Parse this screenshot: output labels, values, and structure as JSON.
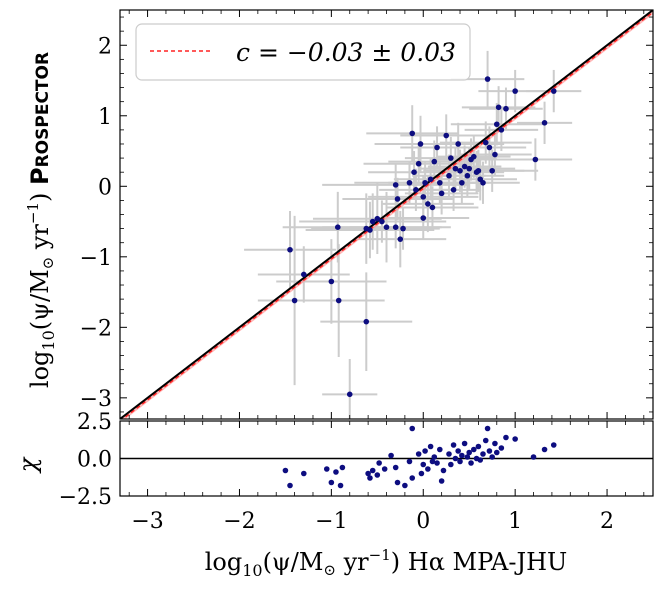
{
  "chart_data": [
    {
      "type": "scatter",
      "panel": "main",
      "xlim": [
        -3.3,
        2.5
      ],
      "ylim": [
        -3.3,
        2.5
      ],
      "xticks": [
        -3,
        -2,
        -1,
        0,
        1,
        2
      ],
      "yticks": [
        -3,
        -2,
        -1,
        0,
        1,
        2
      ],
      "xtick_labels": [
        "−3",
        "−2",
        "−1",
        "0",
        "1",
        "2"
      ],
      "ytick_labels": [
        "−3",
        "−2",
        "−1",
        "0",
        "1",
        "2"
      ],
      "ylabel_main": "log",
      "ylabel_sub": "10",
      "ylabel_rest": "(ψ/M",
      "ylabel_sun": "⊙",
      "ylabel_unit": " yr",
      "ylabel_exp": "−1",
      "ylabel_tail": ") ",
      "ylabel_code": "Prospector",
      "legend_label": "c = −0.03 ± 0.03",
      "legend_position": "top-left",
      "one_to_one_line": {
        "color": "#000000",
        "label": ""
      },
      "fit_line": {
        "intercept": -0.03,
        "uncertainty": 0.03,
        "color": "#ff2222",
        "band_color": "#ff9999"
      },
      "point_color": "#0d0d80",
      "errorbar_color": "#cccccc",
      "points": [
        {
          "x": -1.45,
          "y": -0.9,
          "xerr": 0.5,
          "yerr": 0.55
        },
        {
          "x": -1.4,
          "y": -1.62,
          "xerr": 0.4,
          "yerr": 1.2
        },
        {
          "x": -1.3,
          "y": -1.25,
          "xerr": 0.5,
          "yerr": 0.4
        },
        {
          "x": -1.0,
          "y": -1.35,
          "xerr": 0.6,
          "yerr": 0.6
        },
        {
          "x": -0.92,
          "y": -1.62,
          "xerr": 0.5,
          "yerr": 0.8
        },
        {
          "x": -0.93,
          "y": -0.58,
          "xerr": 0.6,
          "yerr": 0.5
        },
        {
          "x": -0.8,
          "y": -2.95,
          "xerr": 0.3,
          "yerr": 0.5
        },
        {
          "x": -0.62,
          "y": -1.92,
          "xerr": 0.5,
          "yerr": 0.7
        },
        {
          "x": -0.62,
          "y": -0.6,
          "xerr": 0.6,
          "yerr": 0.5
        },
        {
          "x": -0.58,
          "y": -0.62,
          "xerr": 0.7,
          "yerr": 0.4
        },
        {
          "x": -0.55,
          "y": -0.5,
          "xerr": 0.8,
          "yerr": 0.4
        },
        {
          "x": -0.5,
          "y": -0.46,
          "xerr": 0.7,
          "yerr": 0.5
        },
        {
          "x": -0.45,
          "y": -0.5,
          "xerr": 0.6,
          "yerr": 0.3
        },
        {
          "x": -0.4,
          "y": -0.58,
          "xerr": 0.7,
          "yerr": 0.5
        },
        {
          "x": -0.3,
          "y": 0.02,
          "xerr": 0.8,
          "yerr": 0.3
        },
        {
          "x": -0.28,
          "y": -0.18,
          "xerr": 0.6,
          "yerr": 0.3
        },
        {
          "x": -0.3,
          "y": -0.58,
          "xerr": 0.5,
          "yerr": 0.3
        },
        {
          "x": -0.25,
          "y": -0.75,
          "xerr": 0.5,
          "yerr": 0.4
        },
        {
          "x": -0.22,
          "y": -0.6,
          "xerr": 0.4,
          "yerr": 0.3
        },
        {
          "x": -0.15,
          "y": 0.05,
          "xerr": 0.6,
          "yerr": 0.3
        },
        {
          "x": -0.12,
          "y": 0.75,
          "xerr": 0.5,
          "yerr": 0.4
        },
        {
          "x": -0.1,
          "y": 0.2,
          "xerr": 0.5,
          "yerr": 0.3
        },
        {
          "x": -0.08,
          "y": -0.05,
          "xerr": 0.4,
          "yerr": 0.3
        },
        {
          "x": -0.05,
          "y": 0.32,
          "xerr": 0.6,
          "yerr": 0.3
        },
        {
          "x": -0.03,
          "y": 0.6,
          "xerr": 0.5,
          "yerr": 0.4
        },
        {
          "x": 0.0,
          "y": -0.15,
          "xerr": 0.6,
          "yerr": 0.3
        },
        {
          "x": 0.0,
          "y": -0.45,
          "xerr": 0.5,
          "yerr": 0.3
        },
        {
          "x": 0.02,
          "y": 0.05,
          "xerr": 0.4,
          "yerr": 0.3
        },
        {
          "x": 0.05,
          "y": -0.25,
          "xerr": 0.5,
          "yerr": 0.4
        },
        {
          "x": 0.08,
          "y": 0.1,
          "xerr": 0.4,
          "yerr": 0.3
        },
        {
          "x": 0.1,
          "y": -0.3,
          "xerr": 0.5,
          "yerr": 0.3
        },
        {
          "x": 0.12,
          "y": 0.35,
          "xerr": 0.5,
          "yerr": 0.3
        },
        {
          "x": 0.15,
          "y": 0.55,
          "xerr": 0.4,
          "yerr": 0.3
        },
        {
          "x": 0.18,
          "y": 0.05,
          "xerr": 0.4,
          "yerr": 0.3
        },
        {
          "x": 0.2,
          "y": -0.1,
          "xerr": 0.4,
          "yerr": 0.3
        },
        {
          "x": 0.25,
          "y": 0.72,
          "xerr": 0.5,
          "yerr": 0.3
        },
        {
          "x": 0.28,
          "y": 0.15,
          "xerr": 0.4,
          "yerr": 0.3
        },
        {
          "x": 0.3,
          "y": 0.4,
          "xerr": 0.5,
          "yerr": 0.3
        },
        {
          "x": 0.33,
          "y": -0.05,
          "xerr": 0.3,
          "yerr": 0.3
        },
        {
          "x": 0.35,
          "y": 0.25,
          "xerr": 0.4,
          "yerr": 0.3
        },
        {
          "x": 0.38,
          "y": 0.6,
          "xerr": 0.5,
          "yerr": 0.3
        },
        {
          "x": 0.4,
          "y": 0.22,
          "xerr": 0.4,
          "yerr": 0.3
        },
        {
          "x": 0.42,
          "y": 0.05,
          "xerr": 0.3,
          "yerr": 0.3
        },
        {
          "x": 0.45,
          "y": 0.28,
          "xerr": 0.4,
          "yerr": 0.3
        },
        {
          "x": 0.48,
          "y": 0.15,
          "xerr": 0.4,
          "yerr": 0.3
        },
        {
          "x": 0.5,
          "y": 0.25,
          "xerr": 0.5,
          "yerr": 0.3
        },
        {
          "x": 0.52,
          "y": 0.38,
          "xerr": 0.4,
          "yerr": 0.3
        },
        {
          "x": 0.55,
          "y": 0.42,
          "xerr": 0.4,
          "yerr": 0.3
        },
        {
          "x": 0.58,
          "y": 0.2,
          "xerr": 0.3,
          "yerr": 0.3
        },
        {
          "x": 0.6,
          "y": 0.22,
          "xerr": 0.5,
          "yerr": 0.3
        },
        {
          "x": 0.62,
          "y": 0.1,
          "xerr": 0.4,
          "yerr": 0.3
        },
        {
          "x": 0.65,
          "y": 0.05,
          "xerr": 0.4,
          "yerr": 0.3
        },
        {
          "x": 0.68,
          "y": 0.62,
          "xerr": 0.5,
          "yerr": 0.3
        },
        {
          "x": 0.7,
          "y": 1.52,
          "xerr": 0.4,
          "yerr": 0.4
        },
        {
          "x": 0.72,
          "y": 0.55,
          "xerr": 0.4,
          "yerr": 0.3
        },
        {
          "x": 0.75,
          "y": 0.22,
          "xerr": 0.5,
          "yerr": 0.3
        },
        {
          "x": 0.78,
          "y": 0.45,
          "xerr": 0.4,
          "yerr": 0.3
        },
        {
          "x": 0.8,
          "y": 0.88,
          "xerr": 0.5,
          "yerr": 0.3
        },
        {
          "x": 0.82,
          "y": 1.12,
          "xerr": 0.4,
          "yerr": 0.3
        },
        {
          "x": 0.85,
          "y": 0.8,
          "xerr": 0.4,
          "yerr": 0.3
        },
        {
          "x": 0.9,
          "y": 1.1,
          "xerr": 0.4,
          "yerr": 0.3
        },
        {
          "x": 1.0,
          "y": 1.35,
          "xerr": 0.4,
          "yerr": 0.3
        },
        {
          "x": 1.22,
          "y": 0.38,
          "xerr": 0.4,
          "yerr": 0.3
        },
        {
          "x": 1.32,
          "y": 0.9,
          "xerr": 0.3,
          "yerr": 0.3
        },
        {
          "x": 1.42,
          "y": 1.35,
          "xerr": 0.3,
          "yerr": 0.3
        }
      ]
    },
    {
      "type": "scatter",
      "panel": "residual",
      "xlim": [
        -3.3,
        2.5
      ],
      "ylim": [
        -2.5,
        2.5
      ],
      "yticks": [
        2.5,
        0.0,
        -2.5
      ],
      "ytick_labels": [
        "2.5",
        "0.0",
        "−2.5"
      ],
      "ylabel": "χ",
      "xlabel_main": "log",
      "xlabel_sub": "10",
      "xlabel_rest": "(ψ/M",
      "xlabel_sun": "⊙",
      "xlabel_unit": " yr",
      "xlabel_exp": "−1",
      "xlabel_tail": ") Hα MPA-JHU",
      "zero_line": 0.0,
      "points": [
        {
          "x": -1.5,
          "y": -0.8
        },
        {
          "x": -1.45,
          "y": -1.8
        },
        {
          "x": -1.3,
          "y": -1.0
        },
        {
          "x": -1.05,
          "y": -0.7
        },
        {
          "x": -1.0,
          "y": -1.6
        },
        {
          "x": -0.95,
          "y": -0.9
        },
        {
          "x": -0.9,
          "y": -1.8
        },
        {
          "x": -0.88,
          "y": -0.6
        },
        {
          "x": -0.6,
          "y": -1.0
        },
        {
          "x": -0.58,
          "y": -1.3
        },
        {
          "x": -0.55,
          "y": -0.8
        },
        {
          "x": -0.5,
          "y": -1.1
        },
        {
          "x": -0.48,
          "y": -0.3
        },
        {
          "x": -0.42,
          "y": -0.7
        },
        {
          "x": -0.35,
          "y": 0.2
        },
        {
          "x": -0.3,
          "y": -0.6
        },
        {
          "x": -0.28,
          "y": -1.6
        },
        {
          "x": -0.2,
          "y": -1.8
        },
        {
          "x": -0.15,
          "y": -0.2
        },
        {
          "x": -0.12,
          "y": -1.3
        },
        {
          "x": -0.05,
          "y": 0.3
        },
        {
          "x": -0.02,
          "y": -1.0
        },
        {
          "x": 0.0,
          "y": -0.4
        },
        {
          "x": 0.02,
          "y": 0.5
        },
        {
          "x": 0.05,
          "y": -0.7
        },
        {
          "x": 0.08,
          "y": 0.8
        },
        {
          "x": 0.1,
          "y": -0.2
        },
        {
          "x": 0.12,
          "y": 0.1
        },
        {
          "x": -0.12,
          "y": 2.0
        },
        {
          "x": 0.15,
          "y": -0.3
        },
        {
          "x": 0.18,
          "y": 0.6
        },
        {
          "x": 0.2,
          "y": -1.5
        },
        {
          "x": 0.22,
          "y": -0.8
        },
        {
          "x": 0.28,
          "y": 0.3
        },
        {
          "x": 0.3,
          "y": -0.4
        },
        {
          "x": 0.33,
          "y": 0.9
        },
        {
          "x": 0.35,
          "y": 0.0
        },
        {
          "x": 0.38,
          "y": 0.5
        },
        {
          "x": 0.4,
          "y": -0.2
        },
        {
          "x": 0.42,
          "y": 0.2
        },
        {
          "x": 0.45,
          "y": 1.0
        },
        {
          "x": 0.48,
          "y": 0.1
        },
        {
          "x": 0.5,
          "y": 0.4
        },
        {
          "x": 0.52,
          "y": -0.3
        },
        {
          "x": 0.55,
          "y": 0.6
        },
        {
          "x": 0.58,
          "y": 0.0
        },
        {
          "x": 0.6,
          "y": 0.8
        },
        {
          "x": 0.62,
          "y": -0.1
        },
        {
          "x": 0.65,
          "y": 0.3
        },
        {
          "x": 0.68,
          "y": 1.2
        },
        {
          "x": 0.7,
          "y": 2.0
        },
        {
          "x": 0.72,
          "y": 0.5
        },
        {
          "x": 0.75,
          "y": 0.1
        },
        {
          "x": 0.78,
          "y": 1.0
        },
        {
          "x": 0.8,
          "y": 0.4
        },
        {
          "x": 0.85,
          "y": 0.7
        },
        {
          "x": 0.9,
          "y": 1.4
        },
        {
          "x": 1.0,
          "y": 1.3
        },
        {
          "x": 1.2,
          "y": 0.1
        },
        {
          "x": 1.32,
          "y": 0.6
        },
        {
          "x": 1.42,
          "y": 0.9
        }
      ]
    }
  ]
}
